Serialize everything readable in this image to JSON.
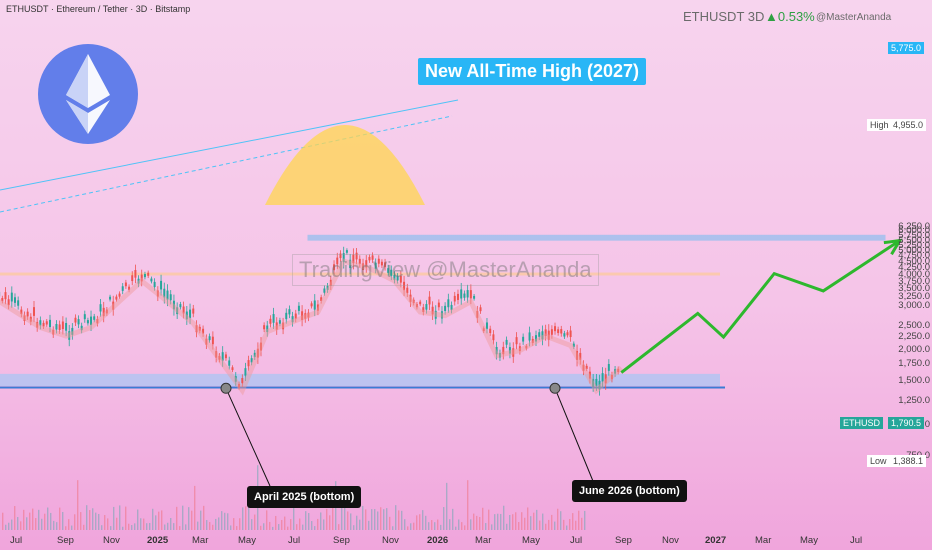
{
  "header": {
    "symbol_title": "ETHUSDT · Ethereum / Tether · 3D · Bitstamp",
    "ticker": "ETHUSDT 3D",
    "change": "▲0.53%",
    "author": "@MasterAnanda",
    "watermark": "TradingView @MasterAnanda"
  },
  "annotations": {
    "target_box": "New All-Time High (2027)",
    "bottom_2025": "April 2025 (bottom)",
    "bottom_2026": "June 2026 (bottom)"
  },
  "logo": {
    "icon": "ethereum-logo-icon",
    "color": "#627eea"
  },
  "price_axis": {
    "ticks": [
      "6,250.0",
      "6,000.0",
      "5,750.0",
      "5,500.0",
      "5,250.0",
      "5,000.0",
      "4,750.0",
      "4,500.0",
      "4,250.0",
      "4,000.0",
      "3,750.0",
      "3,500.0",
      "3,250.0",
      "3,000.0",
      "2,500.0",
      "2,250.0",
      "2,000.0",
      "1,750.0",
      "1,500.0",
      "1,250.0",
      "1,000.0",
      "750.0"
    ],
    "high_label": "High",
    "high_value": "4,955.0",
    "low_label": "Low",
    "low_value": "1,388.1",
    "target_value": "5,775.0",
    "last_label": "ETHUSD",
    "last_value": "1,790.5"
  },
  "time_axis": {
    "ticks": [
      "Jul",
      "Sep",
      "Nov",
      "2025",
      "Mar",
      "May",
      "Jul",
      "Sep",
      "Nov",
      "2026",
      "Mar",
      "May",
      "Jul",
      "Sep",
      "Nov",
      "2027",
      "Mar",
      "May",
      "Jul"
    ]
  },
  "colors": {
    "up": "#26a69a",
    "down": "#ef5350",
    "projection": "#2db82d",
    "target": "#29b6f6",
    "support": "#90caf9",
    "resistance": "#ffcc80"
  },
  "chart_data": {
    "type": "line",
    "title": "ETHUSDT · Ethereum / Tether · 3D · Bitstamp",
    "y_scale": "log",
    "ylim": [
      700,
      6400
    ],
    "price_path": {
      "x": [
        "2024-06",
        "2024-08",
        "2024-09",
        "2024-10",
        "2024-12",
        "2025-01",
        "2025-02",
        "2025-04",
        "2025-05",
        "2025-07",
        "2025-08",
        "2025-09",
        "2025-10",
        "2025-11",
        "2025-12",
        "2026-01",
        "2026-02",
        "2026-03",
        "2026-04",
        "2026-05",
        "2026-06",
        "2026-07"
      ],
      "close": [
        3500,
        2600,
        2400,
        2600,
        4000,
        3300,
        2700,
        1450,
        2500,
        3000,
        4800,
        4500,
        4000,
        3000,
        2900,
        3300,
        2000,
        2100,
        2400,
        2200,
        1450,
        1790
      ]
    },
    "projection": {
      "x": [
        "2026-07",
        "2026-10",
        "2026-11",
        "2027-01",
        "2027-03",
        "2027-06"
      ],
      "y": [
        1620,
        2800,
        2250,
        4050,
        3450,
        5500
      ]
    },
    "levels": {
      "high": 4955.0,
      "low": 1388.1,
      "target": 5775.0,
      "last": 1790.5
    }
  }
}
